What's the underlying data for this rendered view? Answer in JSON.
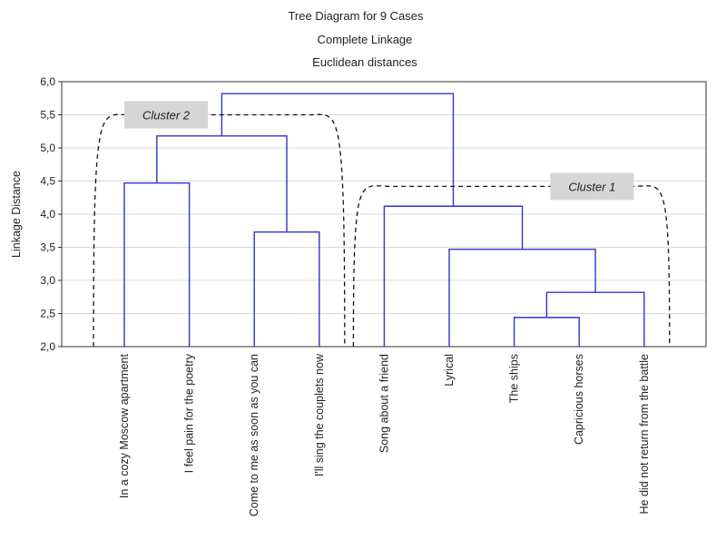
{
  "chart_data": {
    "type": "dendrogram",
    "title_lines": [
      "Tree Diagram for 9 Cases",
      "Complete Linkage",
      "Euclidean distances"
    ],
    "ylabel": "Linkage Distance",
    "ylim": [
      2.0,
      6.0
    ],
    "yticks": [
      "2,0",
      "2,5",
      "3,0",
      "3,5",
      "4,0",
      "4,5",
      "5,0",
      "5,5",
      "6,0"
    ],
    "grid": true,
    "leaves": [
      "In a cozy Moscow apartment",
      "I feel pain for the poetry",
      "Come to me as soon as you can",
      "I'll sing the couplets now",
      "Song about a friend",
      "Lyrical",
      "The ships",
      "Capricious horses",
      "He did not return from the battle"
    ],
    "merges": [
      {
        "a": "L6",
        "b": "L7",
        "height": 2.44
      },
      {
        "a": "M0",
        "b": "L8",
        "height": 2.82
      },
      {
        "a": "L5",
        "b": "M1",
        "height": 3.47
      },
      {
        "a": "L2",
        "b": "L3",
        "height": 3.73
      },
      {
        "a": "L4",
        "b": "M2",
        "height": 4.12
      },
      {
        "a": "L0",
        "b": "L1",
        "height": 4.47
      },
      {
        "a": "M5",
        "b": "M3",
        "height": 5.18
      },
      {
        "a": "M6",
        "b": "M4",
        "height": 5.82
      }
    ],
    "clusters": [
      {
        "label": "Cluster 2",
        "first_leaf": 0,
        "last_leaf": 3,
        "height": 5.5
      },
      {
        "label": "Cluster 1",
        "first_leaf": 4,
        "last_leaf": 8,
        "height": 4.42
      }
    ],
    "colors": {
      "tree": "#3333cc",
      "grid": "#d9d9d9",
      "cluster_box": "#d6d6d6"
    }
  }
}
